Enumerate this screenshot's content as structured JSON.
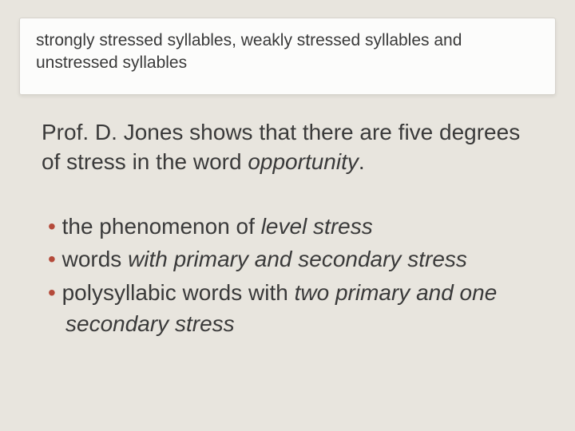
{
  "slide": {
    "background_color": "#e8e5de",
    "text_color": "#3a3a3a",
    "bullet_color": "#b44a3a",
    "header_box": {
      "background_color": "#fcfcfb",
      "border_color": "#d6d3cc",
      "text": "strongly stressed syllables, weakly stressed syllables and unstressed syllables",
      "font_size": 21
    },
    "lead": {
      "text_before_italic": "Prof. D. Jones shows that there are five degrees of stress in the word ",
      "italic_word": "opportunity",
      "text_after_italic": ".",
      "font_size": 28
    },
    "bullets": [
      {
        "plain": "the phenomenon of ",
        "em": "level stress",
        "tail": ""
      },
      {
        "plain": "words ",
        "em": "with primary and secondary stress",
        "tail": ""
      },
      {
        "plain": "polysyllabic words with ",
        "em": "two primary and one secondary stress",
        "tail": ""
      }
    ],
    "bullet_font_size": 28
  }
}
